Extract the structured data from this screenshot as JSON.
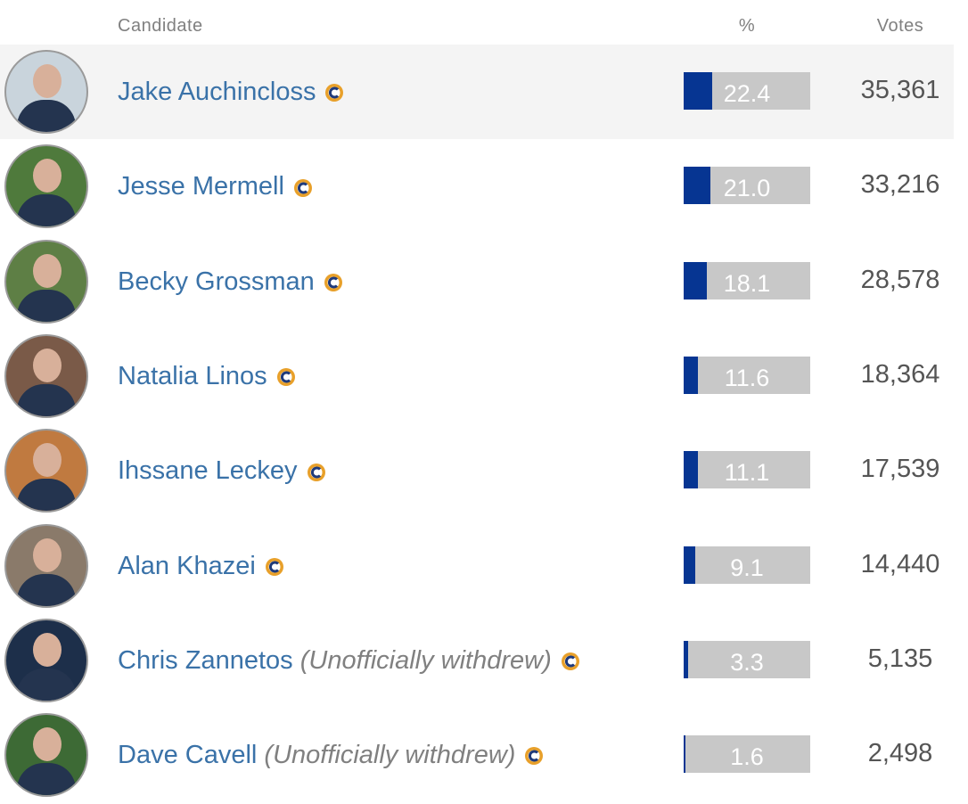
{
  "table": {
    "headers": {
      "candidate": "Candidate",
      "percent": "%",
      "votes": "Votes"
    },
    "rows": [
      {
        "name": "Jake Auchincloss",
        "percent": "22.4",
        "votes": "35,361"
      },
      {
        "name": "Jesse Mermell",
        "percent": "21.0",
        "votes": "33,216"
      },
      {
        "name": "Becky Grossman",
        "percent": "18.1",
        "votes": "28,578"
      },
      {
        "name": "Natalia Linos",
        "percent": "11.6",
        "votes": "18,364"
      },
      {
        "name": "Ihssane Leckey",
        "percent": "11.1",
        "votes": "17,539"
      },
      {
        "name": "Alan Khazei",
        "percent": "9.1",
        "votes": "14,440"
      },
      {
        "name": "Chris Zannetos",
        "note": "(Unofficially withdrew)",
        "percent": "3.3",
        "votes": "5,135"
      },
      {
        "name": "Dave Cavell",
        "note": "(Unofficially withdrew)",
        "percent": "1.6",
        "votes": "2,498"
      }
    ]
  }
}
